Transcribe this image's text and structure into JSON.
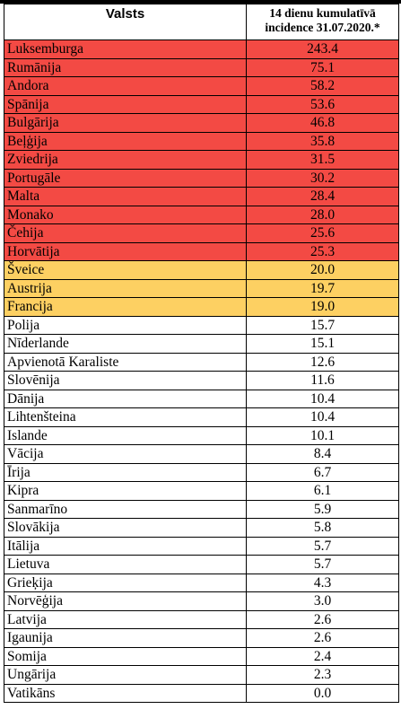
{
  "table": {
    "headers": [
      "Valsts",
      "14 dienu kumulatīvā incidence 31.07.2020.*"
    ],
    "colors": {
      "red": "#f34a44",
      "yellow": "#fdd062",
      "white": "#ffffff"
    },
    "rows": [
      {
        "country": "Luksemburga",
        "value": "243.4",
        "level": "red"
      },
      {
        "country": "Rumānija",
        "value": "75.1",
        "level": "red"
      },
      {
        "country": "Andora",
        "value": "58.2",
        "level": "red"
      },
      {
        "country": "Spānija",
        "value": "53.6",
        "level": "red"
      },
      {
        "country": "Bulgārija",
        "value": "46.8",
        "level": "red"
      },
      {
        "country": "Beļģija",
        "value": "35.8",
        "level": "red"
      },
      {
        "country": "Zviedrija",
        "value": "31.5",
        "level": "red"
      },
      {
        "country": "Portugāle",
        "value": "30.2",
        "level": "red"
      },
      {
        "country": "Malta",
        "value": "28.4",
        "level": "red"
      },
      {
        "country": "Monako",
        "value": "28.0",
        "level": "red"
      },
      {
        "country": "Čehija",
        "value": "25.6",
        "level": "red"
      },
      {
        "country": "Horvātija",
        "value": "25.3",
        "level": "red"
      },
      {
        "country": "Šveice",
        "value": "20.0",
        "level": "yellow"
      },
      {
        "country": "Austrija",
        "value": "19.7",
        "level": "yellow"
      },
      {
        "country": "Francija",
        "value": "19.0",
        "level": "yellow"
      },
      {
        "country": "Polija",
        "value": "15.7",
        "level": "white"
      },
      {
        "country": "Nīderlande",
        "value": "15.1",
        "level": "white"
      },
      {
        "country": "Apvienotā Karaliste",
        "value": "12.6",
        "level": "white"
      },
      {
        "country": "Slovēnija",
        "value": "11.6",
        "level": "white"
      },
      {
        "country": "Dānija",
        "value": "10.4",
        "level": "white"
      },
      {
        "country": "Lihtenšteina",
        "value": "10.4",
        "level": "white"
      },
      {
        "country": "Islande",
        "value": "10.1",
        "level": "white"
      },
      {
        "country": "Vācija",
        "value": "8.4",
        "level": "white"
      },
      {
        "country": "Īrija",
        "value": "6.7",
        "level": "white"
      },
      {
        "country": "Kipra",
        "value": "6.1",
        "level": "white"
      },
      {
        "country": "Sanmarīno",
        "value": "5.9",
        "level": "white"
      },
      {
        "country": "Slovākija",
        "value": "5.8",
        "level": "white"
      },
      {
        "country": "Itālija",
        "value": "5.7",
        "level": "white"
      },
      {
        "country": "Lietuva",
        "value": "5.7",
        "level": "white"
      },
      {
        "country": "Grieķija",
        "value": "4.3",
        "level": "white"
      },
      {
        "country": "Norvēģija",
        "value": "3.0",
        "level": "white"
      },
      {
        "country": "Latvija",
        "value": "2.6",
        "level": "white"
      },
      {
        "country": "Igaunija",
        "value": "2.6",
        "level": "white"
      },
      {
        "country": "Somija",
        "value": "2.4",
        "level": "white"
      },
      {
        "country": "Ungārija",
        "value": "2.3",
        "level": "white"
      },
      {
        "country": "Vatikāns",
        "value": "0.0",
        "level": "white"
      }
    ]
  }
}
